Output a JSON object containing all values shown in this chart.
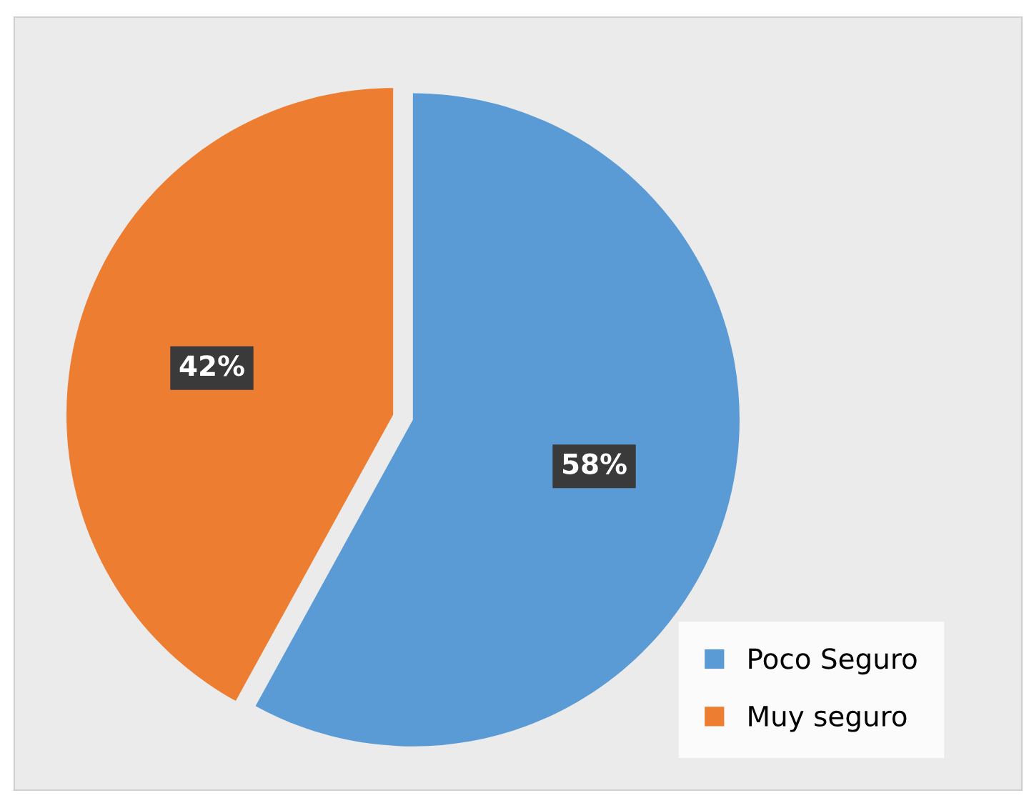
{
  "chart_data": {
    "type": "pie",
    "categories": [
      "Poco Seguro",
      "Muy seguro"
    ],
    "values": [
      58,
      42
    ],
    "colors": [
      "#5b9bd5",
      "#ed7d31"
    ],
    "value_labels": [
      "58%",
      "42%"
    ],
    "legend": "bottom right"
  }
}
